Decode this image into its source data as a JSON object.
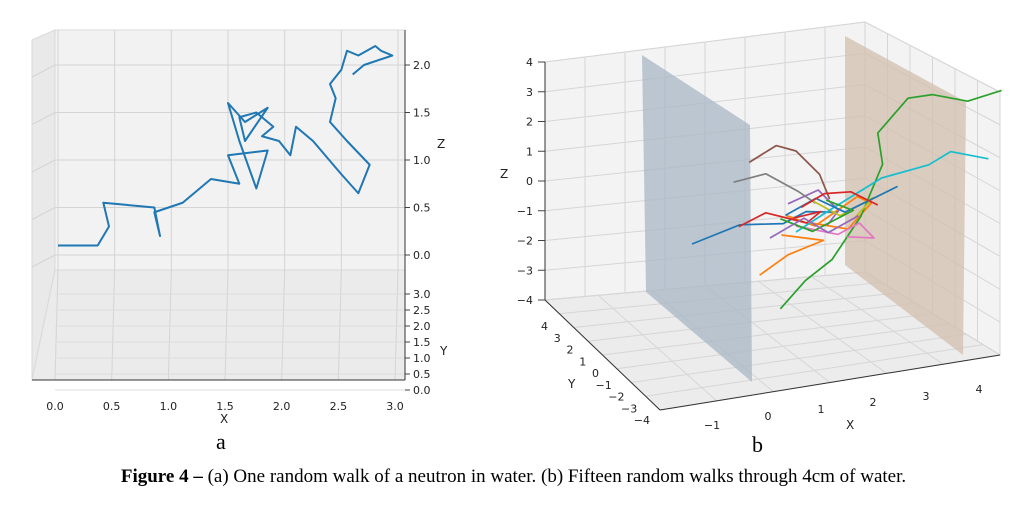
{
  "figure": {
    "caption_label": "Figure 4 –",
    "caption_text": " (a) One random walk of a neutron in water. (b) Fifteen random walks through 4cm of water.",
    "panel_a_letter": "a",
    "panel_b_letter": "b"
  },
  "chart_data": [
    {
      "type": "line",
      "projection": "3d",
      "xlabel": "X",
      "ylabel": "Y",
      "zlabel": "Z",
      "x_ticks": [
        "0.0",
        "0.5",
        "1.0",
        "1.5",
        "2.0",
        "2.5",
        "3.0"
      ],
      "y_ticks": [
        "0.0",
        "0.5",
        "1.0",
        "1.5",
        "2.0",
        "2.5",
        "3.0"
      ],
      "z_ticks": [
        "0.0",
        "0.5",
        "1.0",
        "1.5",
        "2.0"
      ],
      "xlim": [
        0,
        3
      ],
      "ylim": [
        0,
        3
      ],
      "zlim": [
        -0.5,
        2.3
      ],
      "series": [
        {
          "color": "#1f77b4",
          "x": [
            0.0,
            0.35,
            0.45,
            0.4,
            0.85,
            0.9,
            0.85,
            1.1,
            1.2,
            1.35,
            1.6,
            1.5,
            1.85,
            1.75,
            1.6,
            1.5,
            1.65,
            1.85,
            1.65,
            1.6,
            1.75,
            1.9,
            1.8,
            1.95,
            2.05,
            2.1,
            2.25,
            2.5,
            2.65,
            2.75,
            2.55,
            2.4,
            2.45,
            2.4,
            2.5,
            2.55,
            2.65,
            2.8,
            2.85,
            2.95,
            2.7,
            2.6
          ],
          "y": [
            0,
            0,
            0,
            0,
            0,
            0,
            0,
            0,
            0,
            0,
            0,
            0,
            0,
            0,
            0,
            0,
            0,
            0,
            0,
            0,
            0,
            0,
            0,
            0,
            0,
            0,
            0,
            0,
            0,
            0,
            0,
            0,
            0,
            0,
            0,
            0,
            0,
            0,
            0,
            0,
            0,
            0
          ],
          "z": [
            0.1,
            0.1,
            0.3,
            0.55,
            0.5,
            0.2,
            0.45,
            0.55,
            0.65,
            0.8,
            0.75,
            1.05,
            1.1,
            0.7,
            1.2,
            1.6,
            1.4,
            1.55,
            1.2,
            1.45,
            1.5,
            1.35,
            1.25,
            1.2,
            1.05,
            1.35,
            1.2,
            0.85,
            0.65,
            0.95,
            1.2,
            1.4,
            1.65,
            1.8,
            1.95,
            2.15,
            2.1,
            2.2,
            2.15,
            2.1,
            2.0,
            1.9
          ]
        }
      ]
    },
    {
      "type": "line",
      "projection": "3d",
      "xlabel": "X",
      "ylabel": "Y",
      "zlabel": "Z",
      "x_ticks": [
        "−1",
        "0",
        "1",
        "2",
        "3",
        "4"
      ],
      "y_ticks": [
        "4",
        "3",
        "2",
        "1",
        "0",
        "−1",
        "−2",
        "−3",
        "−4"
      ],
      "z_ticks": [
        "4",
        "3",
        "2",
        "1",
        "0",
        "−1",
        "−2",
        "−3",
        "−4"
      ],
      "xlim": [
        -1.5,
        4.5
      ],
      "ylim": [
        -4,
        4
      ],
      "zlim": [
        -4,
        4
      ],
      "planes": [
        {
          "x": 0,
          "color": "#aab7c6"
        },
        {
          "x": 4,
          "color": "#d2bfad"
        }
      ],
      "series": [
        {
          "color": "#1f77b4",
          "x": [
            -1.5,
            -0.5,
            0.2,
            0.8,
            1.3
          ],
          "y": [
            0,
            0.3,
            -0.2,
            0.4,
            0
          ],
          "z": [
            -1.5,
            -1.0,
            -1.2,
            -0.8,
            -1.0
          ]
        },
        {
          "color": "#ff7f0e",
          "x": [
            0.3,
            1.0,
            1.6,
            2.0,
            1.5,
            0.9
          ],
          "y": [
            0,
            0.5,
            -0.3,
            0.2,
            0,
            0.4
          ],
          "z": [
            -0.9,
            -1.3,
            -0.6,
            -0.8,
            -1.6,
            -1.2
          ]
        },
        {
          "color": "#2ca02c",
          "x": [
            0.2,
            0.6,
            1.3,
            1.8,
            2.3,
            2.1,
            2.6,
            3.2,
            3.8,
            4.4
          ],
          "y": [
            0,
            -0.3,
            0.4,
            0.2,
            0.5,
            0.1,
            -0.2,
            0.3,
            0,
            -0.2
          ],
          "z": [
            -4.0,
            -3.2,
            -2.5,
            -1.2,
            0.5,
            1.5,
            2.5,
            2.6,
            2.2,
            2.4
          ]
        },
        {
          "color": "#d62728",
          "x": [
            -0.6,
            0.0,
            0.6,
            1.0,
            0.5
          ],
          "y": [
            0,
            0.3,
            -0.4,
            0.1,
            0.2
          ],
          "z": [
            -1.1,
            -0.7,
            -1.3,
            -0.9,
            -1.0
          ]
        },
        {
          "color": "#9467bd",
          "x": [
            0.4,
            0.9,
            1.4,
            1.1
          ],
          "y": [
            0.2,
            -0.1,
            0.3,
            0
          ],
          "z": [
            -0.5,
            -0.2,
            -0.9,
            -1.4
          ]
        },
        {
          "color": "#8c564b",
          "x": [
            -0.4,
            0.2,
            0.5,
            0.9,
            1.2
          ],
          "y": [
            0,
            0.3,
            0,
            -0.2,
            0.2
          ],
          "z": [
            1.0,
            1.5,
            1.2,
            0.3,
            -0.5
          ]
        },
        {
          "color": "#e377c2",
          "x": [
            0.5,
            1.2,
            1.8,
            2.0,
            1.4
          ],
          "y": [
            0,
            -0.4,
            0.3,
            0,
            -0.3
          ],
          "z": [
            -1.3,
            -1.8,
            -1.4,
            -2.0,
            -1.9
          ]
        },
        {
          "color": "#7f7f7f",
          "x": [
            -0.7,
            0.0,
            0.5,
            0.9
          ],
          "y": [
            0,
            0.3,
            -0.2,
            0.1
          ],
          "z": [
            0.4,
            0.6,
            -0.2,
            -0.6
          ]
        },
        {
          "color": "#bcbd22",
          "x": [
            0.8,
            1.4,
            1.9,
            1.6
          ],
          "y": [
            0,
            0.2,
            -0.3,
            0
          ],
          "z": [
            -0.5,
            -1.1,
            -0.7,
            -1.3
          ]
        },
        {
          "color": "#17becf",
          "x": [
            0.5,
            1.3,
            2.2,
            3.0,
            3.5,
            4.2
          ],
          "y": [
            0,
            0.4,
            0.2,
            -0.2,
            0.1,
            0
          ],
          "z": [
            -1.5,
            -0.8,
            0.0,
            0.2,
            0.6,
            0.2
          ]
        },
        {
          "color": "#ff7f0e",
          "x": [
            -0.2,
            0.4,
            1.0,
            0.3
          ],
          "y": [
            0,
            0.2,
            -0.1,
            0.3
          ],
          "z": [
            -2.8,
            -2.2,
            -1.9,
            -1.5
          ]
        },
        {
          "color": "#1f77b4",
          "x": [
            0.3,
            0.8,
            1.5,
            2.4
          ],
          "y": [
            0,
            -0.3,
            0.2,
            -0.2
          ],
          "z": [
            -0.9,
            -0.5,
            -1.0,
            -0.4
          ]
        },
        {
          "color": "#2ca02c",
          "x": [
            0.2,
            0.9,
            1.6,
            1.0
          ],
          "y": [
            0,
            0.3,
            0,
            -0.3
          ],
          "z": [
            -1.0,
            -1.5,
            -1.0,
            -0.6
          ]
        },
        {
          "color": "#d62728",
          "x": [
            0.6,
            1.1,
            1.5,
            2.1
          ],
          "y": [
            0,
            0.2,
            -0.2,
            0.1
          ],
          "z": [
            -0.7,
            -0.3,
            -0.4,
            -0.9
          ]
        },
        {
          "color": "#9467bd",
          "x": [
            0.0,
            0.6,
            1.2,
            1.7
          ],
          "y": [
            0,
            -0.2,
            0.3,
            0
          ],
          "z": [
            -1.6,
            -1.1,
            -1.6,
            -1.2
          ]
        }
      ]
    }
  ]
}
